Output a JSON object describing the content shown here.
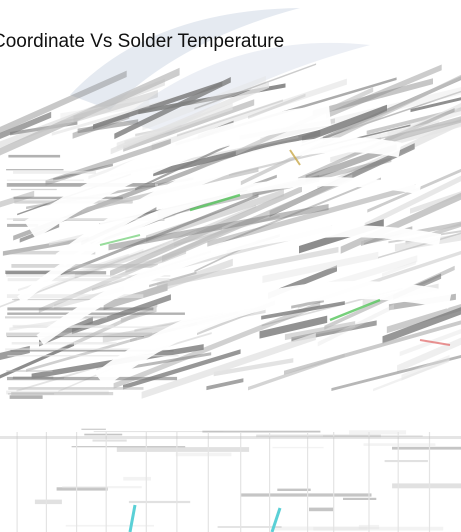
{
  "chart_data": {
    "type": "area",
    "title": "Coordinate Vs Solder Temperature",
    "xlabel": "",
    "ylabel": "",
    "grid": true,
    "legend": "none",
    "colors": {
      "band_dark": "#7f7f7f",
      "band_light": "#bdbdbd",
      "band_faint": "#e4e4e4",
      "glow": "#dfe5ee",
      "accent_green": "#54c45a",
      "accent_red": "#e06464",
      "accent_cyan": "#5ad0d6",
      "accent_gold": "#c8a84a"
    }
  }
}
